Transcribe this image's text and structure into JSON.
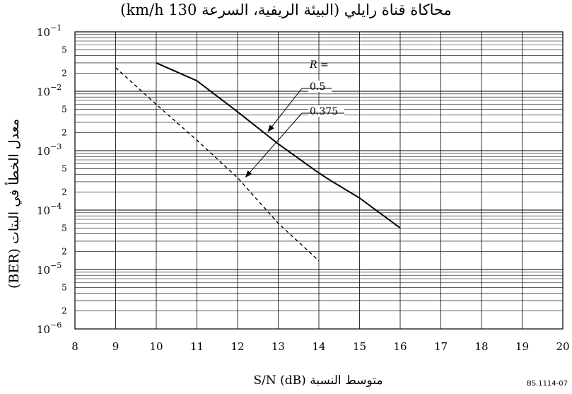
{
  "chart_data": {
    "type": "line",
    "title": "محاكاة قناة رايلي (البيئة الريفية، السرعة 130 km/h)",
    "xlabel": "متوسط النسبة S/N (dB)",
    "ylabel": "معدل الخطأ في البتات (BER)",
    "xlim": [
      8,
      20
    ],
    "ylim": [
      1e-06,
      0.1
    ],
    "yscale": "log",
    "grid": true,
    "x_ticks": [
      "8",
      "9",
      "10",
      "11",
      "12",
      "13",
      "14",
      "15",
      "16",
      "17",
      "18",
      "19",
      "20"
    ],
    "y_major_ticks": [
      {
        "value": 0.1,
        "base": "10",
        "exp": "−1"
      },
      {
        "value": 0.01,
        "base": "10",
        "exp": "−2"
      },
      {
        "value": 0.001,
        "base": "10",
        "exp": "−3"
      },
      {
        "value": 0.0001,
        "base": "10",
        "exp": "−4"
      },
      {
        "value": 1e-05,
        "base": "10",
        "exp": "−5"
      },
      {
        "value": 1e-06,
        "base": "10",
        "exp": "−6"
      }
    ],
    "y_minor_tick_labels": [
      "5",
      "2"
    ],
    "legend_title": "R =",
    "series": [
      {
        "name": "0.5",
        "style": "solid",
        "color": "#000000",
        "x": [
          10.0,
          11.0,
          12.0,
          13.0,
          14.0,
          14.3,
          15.0,
          16.0
        ],
        "y": [
          0.03,
          0.015,
          0.0045,
          0.0013,
          0.00042,
          0.00031,
          0.00016,
          5e-05
        ]
      },
      {
        "name": "0.375",
        "style": "dashed",
        "color": "#000000",
        "x": [
          9.0,
          10.0,
          11.0,
          12.0,
          13.0,
          14.0
        ],
        "y": [
          0.025,
          0.006,
          0.0015,
          0.00035,
          6e-05,
          1.4e-05
        ]
      }
    ]
  },
  "figure_code": "BS.1114-07"
}
